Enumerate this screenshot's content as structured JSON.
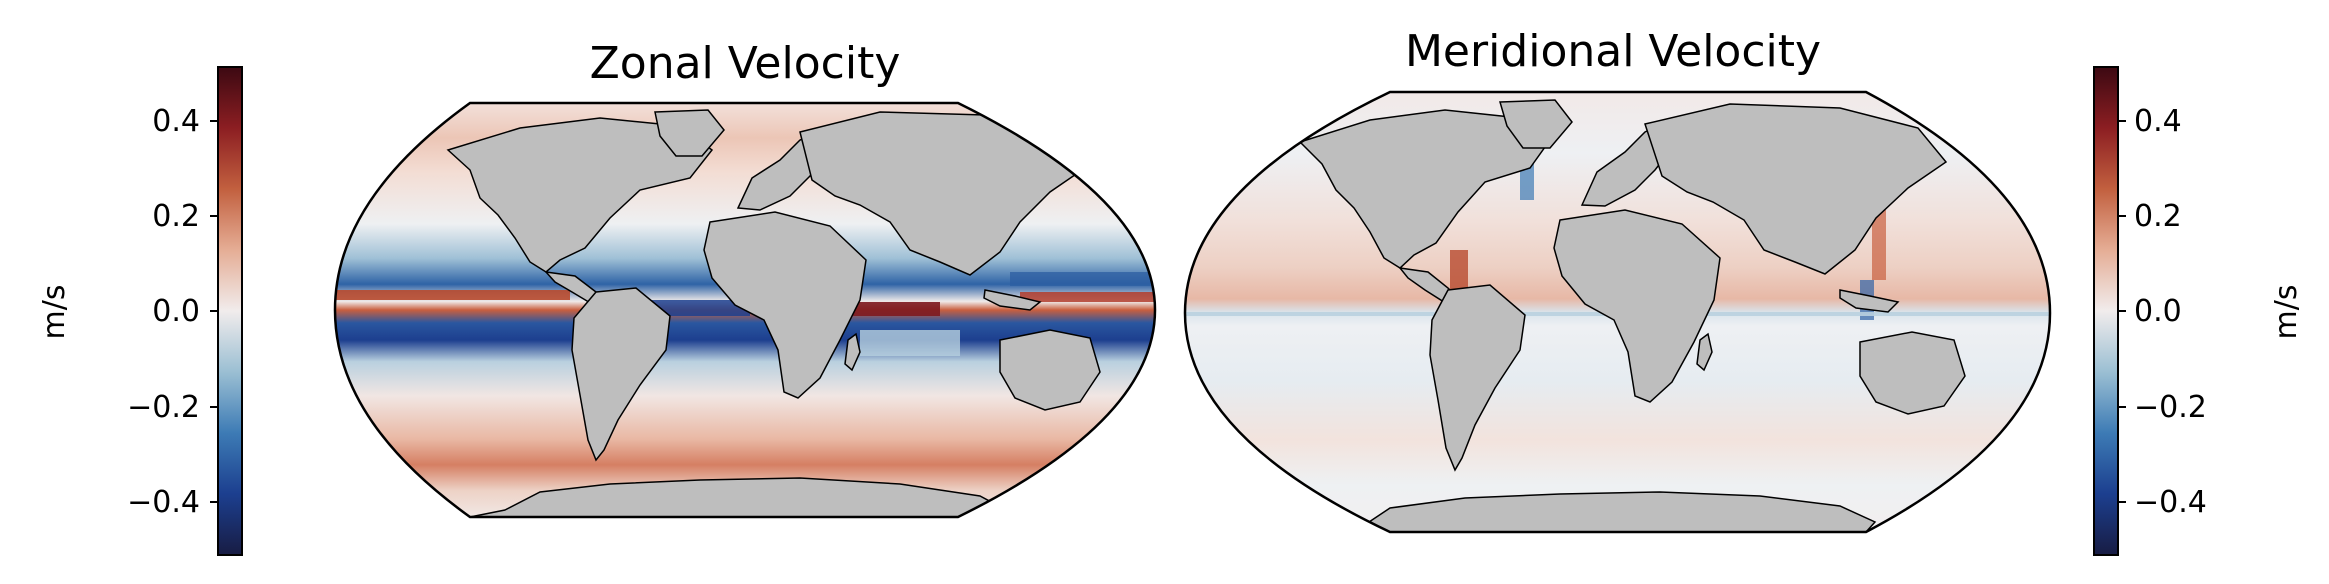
{
  "figure": {
    "panels": [
      {
        "id": "zonal",
        "title": "Zonal Velocity"
      },
      {
        "id": "meridional",
        "title": "Meridional Velocity"
      }
    ],
    "colorbars": [
      {
        "id": "left",
        "label": "m/s",
        "ticks": [
          "0.4",
          "0.2",
          "0.0",
          "−0.2",
          "−0.4"
        ],
        "values": [
          0.4,
          0.2,
          0.0,
          -0.2,
          -0.4
        ]
      },
      {
        "id": "right",
        "label": "m/s",
        "ticks": [
          "0.4",
          "0.2",
          "0.0",
          "−0.2",
          "−0.4"
        ],
        "values": [
          0.4,
          0.2,
          0.0,
          -0.2,
          -0.4
        ]
      }
    ],
    "colormap": {
      "name": "balance",
      "min": -0.5,
      "max": 0.5,
      "stops": [
        "#181c43",
        "#1c3f8f",
        "#3d7bb5",
        "#9bbfd3",
        "#f1ecec",
        "#e5ad95",
        "#c2603f",
        "#8c1e22",
        "#3c0912"
      ]
    },
    "land_color": "#bebebe",
    "coastline_color": "#000000"
  }
}
